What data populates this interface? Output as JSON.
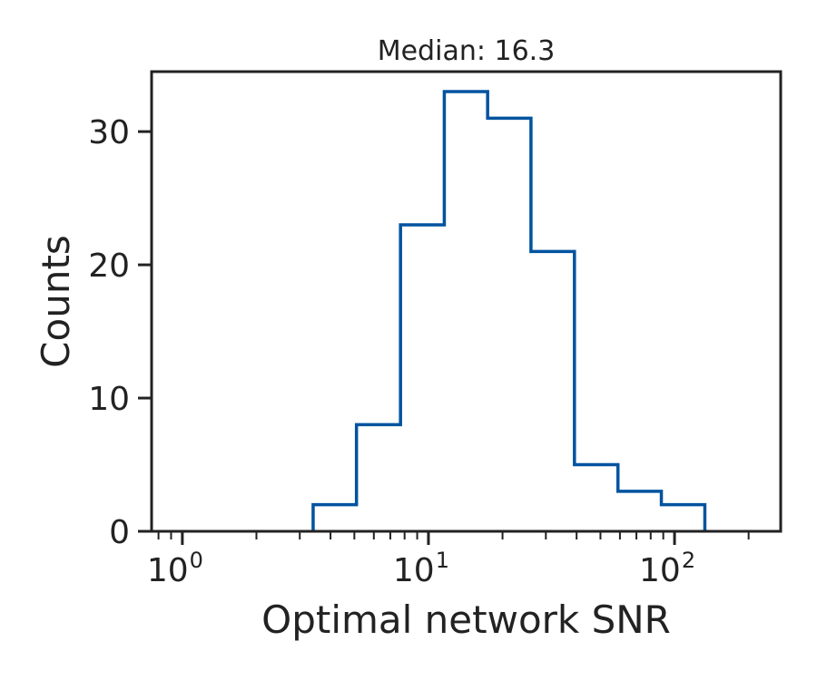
{
  "chart_data": {
    "type": "histogram",
    "title": "Median: 16.3",
    "xlabel": "Optimal network SNR",
    "ylabel": "Counts",
    "x_scale": "log",
    "xlim": [
      0.75,
      270
    ],
    "ylim": [
      0,
      34.5
    ],
    "bin_edges": [
      3.4,
      5.1,
      7.7,
      11.6,
      17.4,
      26.1,
      39.2,
      58.9,
      88.4,
      132.8
    ],
    "counts": [
      2,
      8,
      23,
      33,
      31,
      21,
      5,
      3,
      2
    ],
    "x_ticks": [
      {
        "value": 1,
        "base": "10",
        "exp": "0"
      },
      {
        "value": 10,
        "base": "10",
        "exp": "1"
      },
      {
        "value": 100,
        "base": "10",
        "exp": "2"
      }
    ],
    "y_ticks": [
      {
        "value": 0,
        "label": "0"
      },
      {
        "value": 10,
        "label": "10"
      },
      {
        "value": 20,
        "label": "20"
      },
      {
        "value": 30,
        "label": "30"
      }
    ],
    "grid": false,
    "line_color": "#00539f",
    "axis_color": "#222222"
  }
}
